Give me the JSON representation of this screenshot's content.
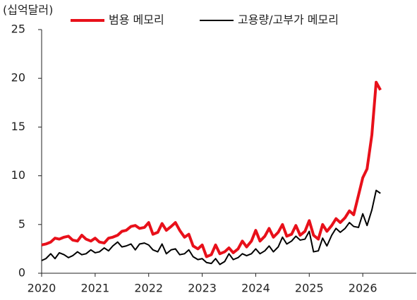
{
  "chart_data": {
    "type": "line",
    "y_label": "(십억달러)",
    "x": [
      2020,
      2020.08,
      2020.17,
      2020.25,
      2020.33,
      2020.42,
      2020.5,
      2020.58,
      2020.67,
      2020.75,
      2020.83,
      2020.92,
      2021,
      2021.08,
      2021.17,
      2021.25,
      2021.33,
      2021.42,
      2021.5,
      2021.58,
      2021.67,
      2021.75,
      2021.83,
      2021.92,
      2022,
      2022.08,
      2022.17,
      2022.25,
      2022.33,
      2022.42,
      2022.5,
      2022.58,
      2022.67,
      2022.75,
      2022.83,
      2022.92,
      2023,
      2023.08,
      2023.17,
      2023.25,
      2023.33,
      2023.42,
      2023.5,
      2023.58,
      2023.67,
      2023.75,
      2023.83,
      2023.92,
      2024,
      2024.08,
      2024.17,
      2024.25,
      2024.33,
      2024.42,
      2024.5,
      2024.58,
      2024.67,
      2024.75,
      2024.83,
      2024.92,
      2025,
      2025.08,
      2025.17,
      2025.25,
      2025.33,
      2025.42,
      2025.5,
      2025.58,
      2025.67,
      2025.75,
      2025.83,
      2025.92,
      2026,
      2026.08,
      2026.17,
      2026.25,
      2026.33
    ],
    "series": [
      {
        "name": "범용 메모리",
        "color": "#e8101a",
        "width": 4,
        "values": [
          2.9,
          3.0,
          3.2,
          3.6,
          3.5,
          3.7,
          3.8,
          3.4,
          3.3,
          3.9,
          3.5,
          3.3,
          3.6,
          3.2,
          3.1,
          3.6,
          3.7,
          3.9,
          4.3,
          4.4,
          4.8,
          4.9,
          4.6,
          4.7,
          5.2,
          4.0,
          4.2,
          5.1,
          4.4,
          4.8,
          5.2,
          4.4,
          3.7,
          4.0,
          2.8,
          2.5,
          2.9,
          1.7,
          1.9,
          2.9,
          2.0,
          2.2,
          2.6,
          2.1,
          2.5,
          3.3,
          2.7,
          3.3,
          4.4,
          3.3,
          3.8,
          4.6,
          3.7,
          4.2,
          5.0,
          3.8,
          4.0,
          4.9,
          3.9,
          4.3,
          5.4,
          3.9,
          3.5,
          5.0,
          4.3,
          4.9,
          5.6,
          5.2,
          5.7,
          6.4,
          6.0,
          8.0,
          9.8,
          10.7,
          14.2,
          19.6,
          18.8
        ]
      },
      {
        "name": "고용량/고부가 메모리",
        "color": "#000000",
        "width": 2,
        "values": [
          1.3,
          1.5,
          2.0,
          1.5,
          2.1,
          1.9,
          1.6,
          1.8,
          2.2,
          1.9,
          2.0,
          2.4,
          2.1,
          2.2,
          2.6,
          2.3,
          2.8,
          3.2,
          2.7,
          2.8,
          3.0,
          2.4,
          3.0,
          3.1,
          2.9,
          2.4,
          2.2,
          3.0,
          2.0,
          2.4,
          2.5,
          1.9,
          2.0,
          2.4,
          1.7,
          1.4,
          1.5,
          1.1,
          1.0,
          1.5,
          0.9,
          1.2,
          2.0,
          1.4,
          1.6,
          2.0,
          1.8,
          2.0,
          2.5,
          2.0,
          2.3,
          2.8,
          2.2,
          2.7,
          3.7,
          3.0,
          3.3,
          3.8,
          3.4,
          3.5,
          4.3,
          2.2,
          2.3,
          3.6,
          2.8,
          3.9,
          4.6,
          4.2,
          4.6,
          5.2,
          4.8,
          4.7,
          6.1,
          4.9,
          6.5,
          8.5,
          8.2
        ]
      }
    ],
    "xlim": [
      2020,
      2027
    ],
    "xticks": [
      2020,
      2021,
      2022,
      2023,
      2024,
      2025,
      2026
    ],
    "ylim": [
      0,
      25
    ],
    "yticks": [
      0,
      5,
      10,
      15,
      20,
      25
    ],
    "grid": false,
    "legend": "top"
  }
}
